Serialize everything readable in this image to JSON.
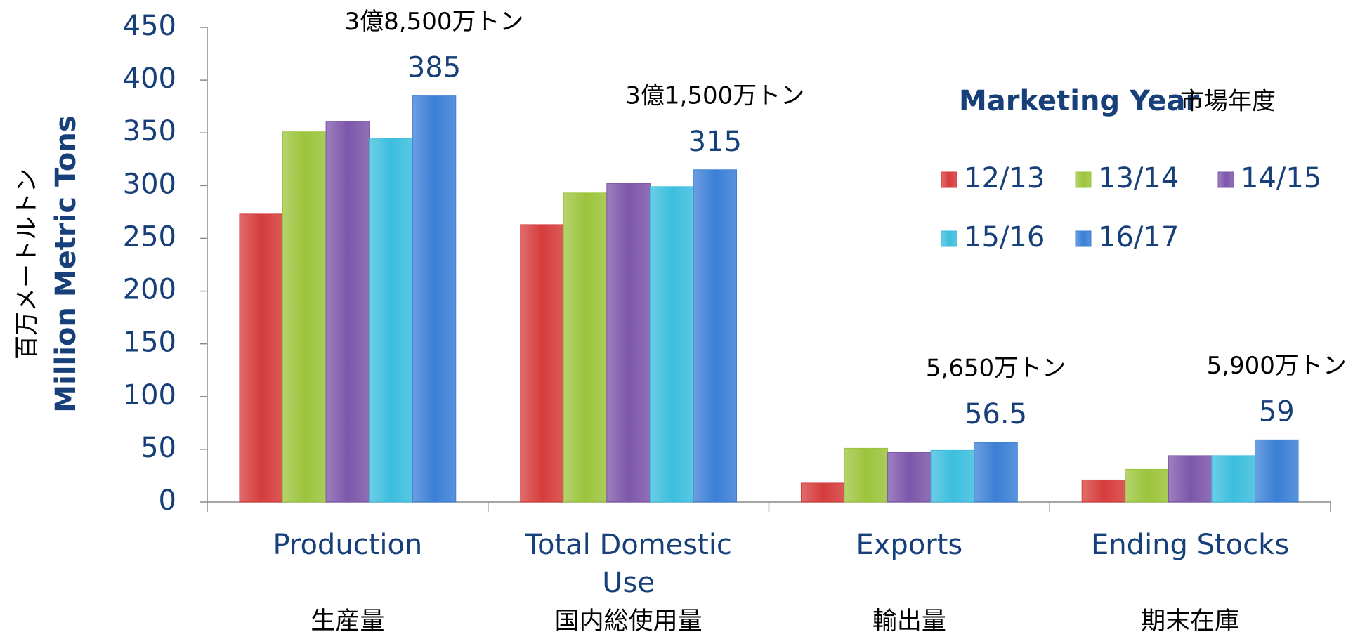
{
  "chart_data": {
    "type": "bar",
    "categories": [
      "Production",
      "Total Domestic Use",
      "Exports",
      "Ending Stocks"
    ],
    "category_subtitles": [
      "生産量",
      "国内総使用量",
      "輸出量",
      "期末在庫"
    ],
    "annotations": [
      "3億8,500万トン",
      "3億1,500万トン",
      "5,650万トン",
      "5,900万トン"
    ],
    "y_label": "Million Metric Tons",
    "y_label_sub": "百万メートルトン",
    "legend_title": "Marketing Year",
    "legend_title_sub": "市場年度",
    "series": [
      {
        "name": "12/13",
        "color": "#d63c3c",
        "values": [
          273,
          263,
          18,
          21
        ]
      },
      {
        "name": "13/14",
        "color": "#9cc43c",
        "values": [
          351,
          293,
          51,
          31
        ]
      },
      {
        "name": "14/15",
        "color": "#7d56aa",
        "values": [
          361,
          302,
          47,
          44
        ]
      },
      {
        "name": "15/16",
        "color": "#3cbede",
        "values": [
          345,
          299,
          49,
          44
        ]
      },
      {
        "name": "16/17",
        "color": "#3b7fd6",
        "values": [
          385,
          315,
          56.5,
          59
        ]
      }
    ],
    "ylim": [
      0,
      450
    ],
    "yticks": [
      0,
      50,
      100,
      150,
      200,
      250,
      300,
      350,
      400,
      450
    ]
  }
}
